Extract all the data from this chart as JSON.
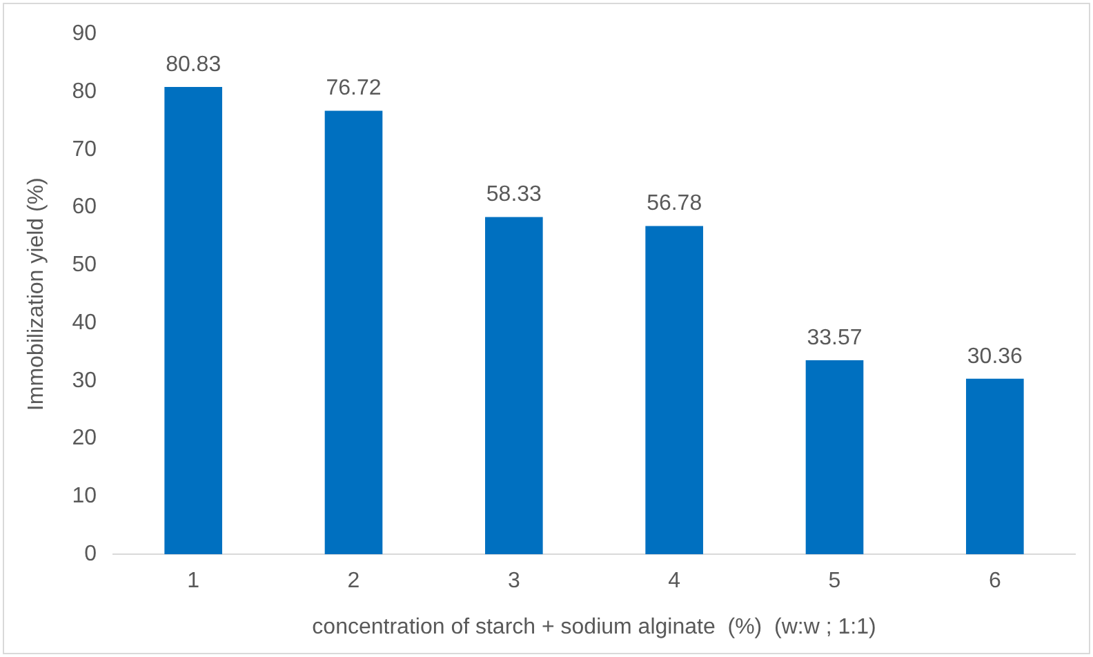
{
  "chart_data": {
    "type": "bar",
    "xlabel": "concentration of starch + sodium alginate  (%)  (w:w ; 1:1)",
    "ylabel": "Immobilization yield (%)",
    "categories": [
      "1",
      "2",
      "3",
      "4",
      "5",
      "6"
    ],
    "values": [
      80.83,
      76.72,
      58.33,
      56.78,
      33.57,
      30.36
    ],
    "color": "#0070c0",
    "ylim": [
      0,
      90
    ],
    "yticks": [
      0,
      10,
      20,
      30,
      40,
      50,
      60,
      70,
      80,
      90
    ],
    "grid": false,
    "legend": false,
    "data_labels": true
  }
}
